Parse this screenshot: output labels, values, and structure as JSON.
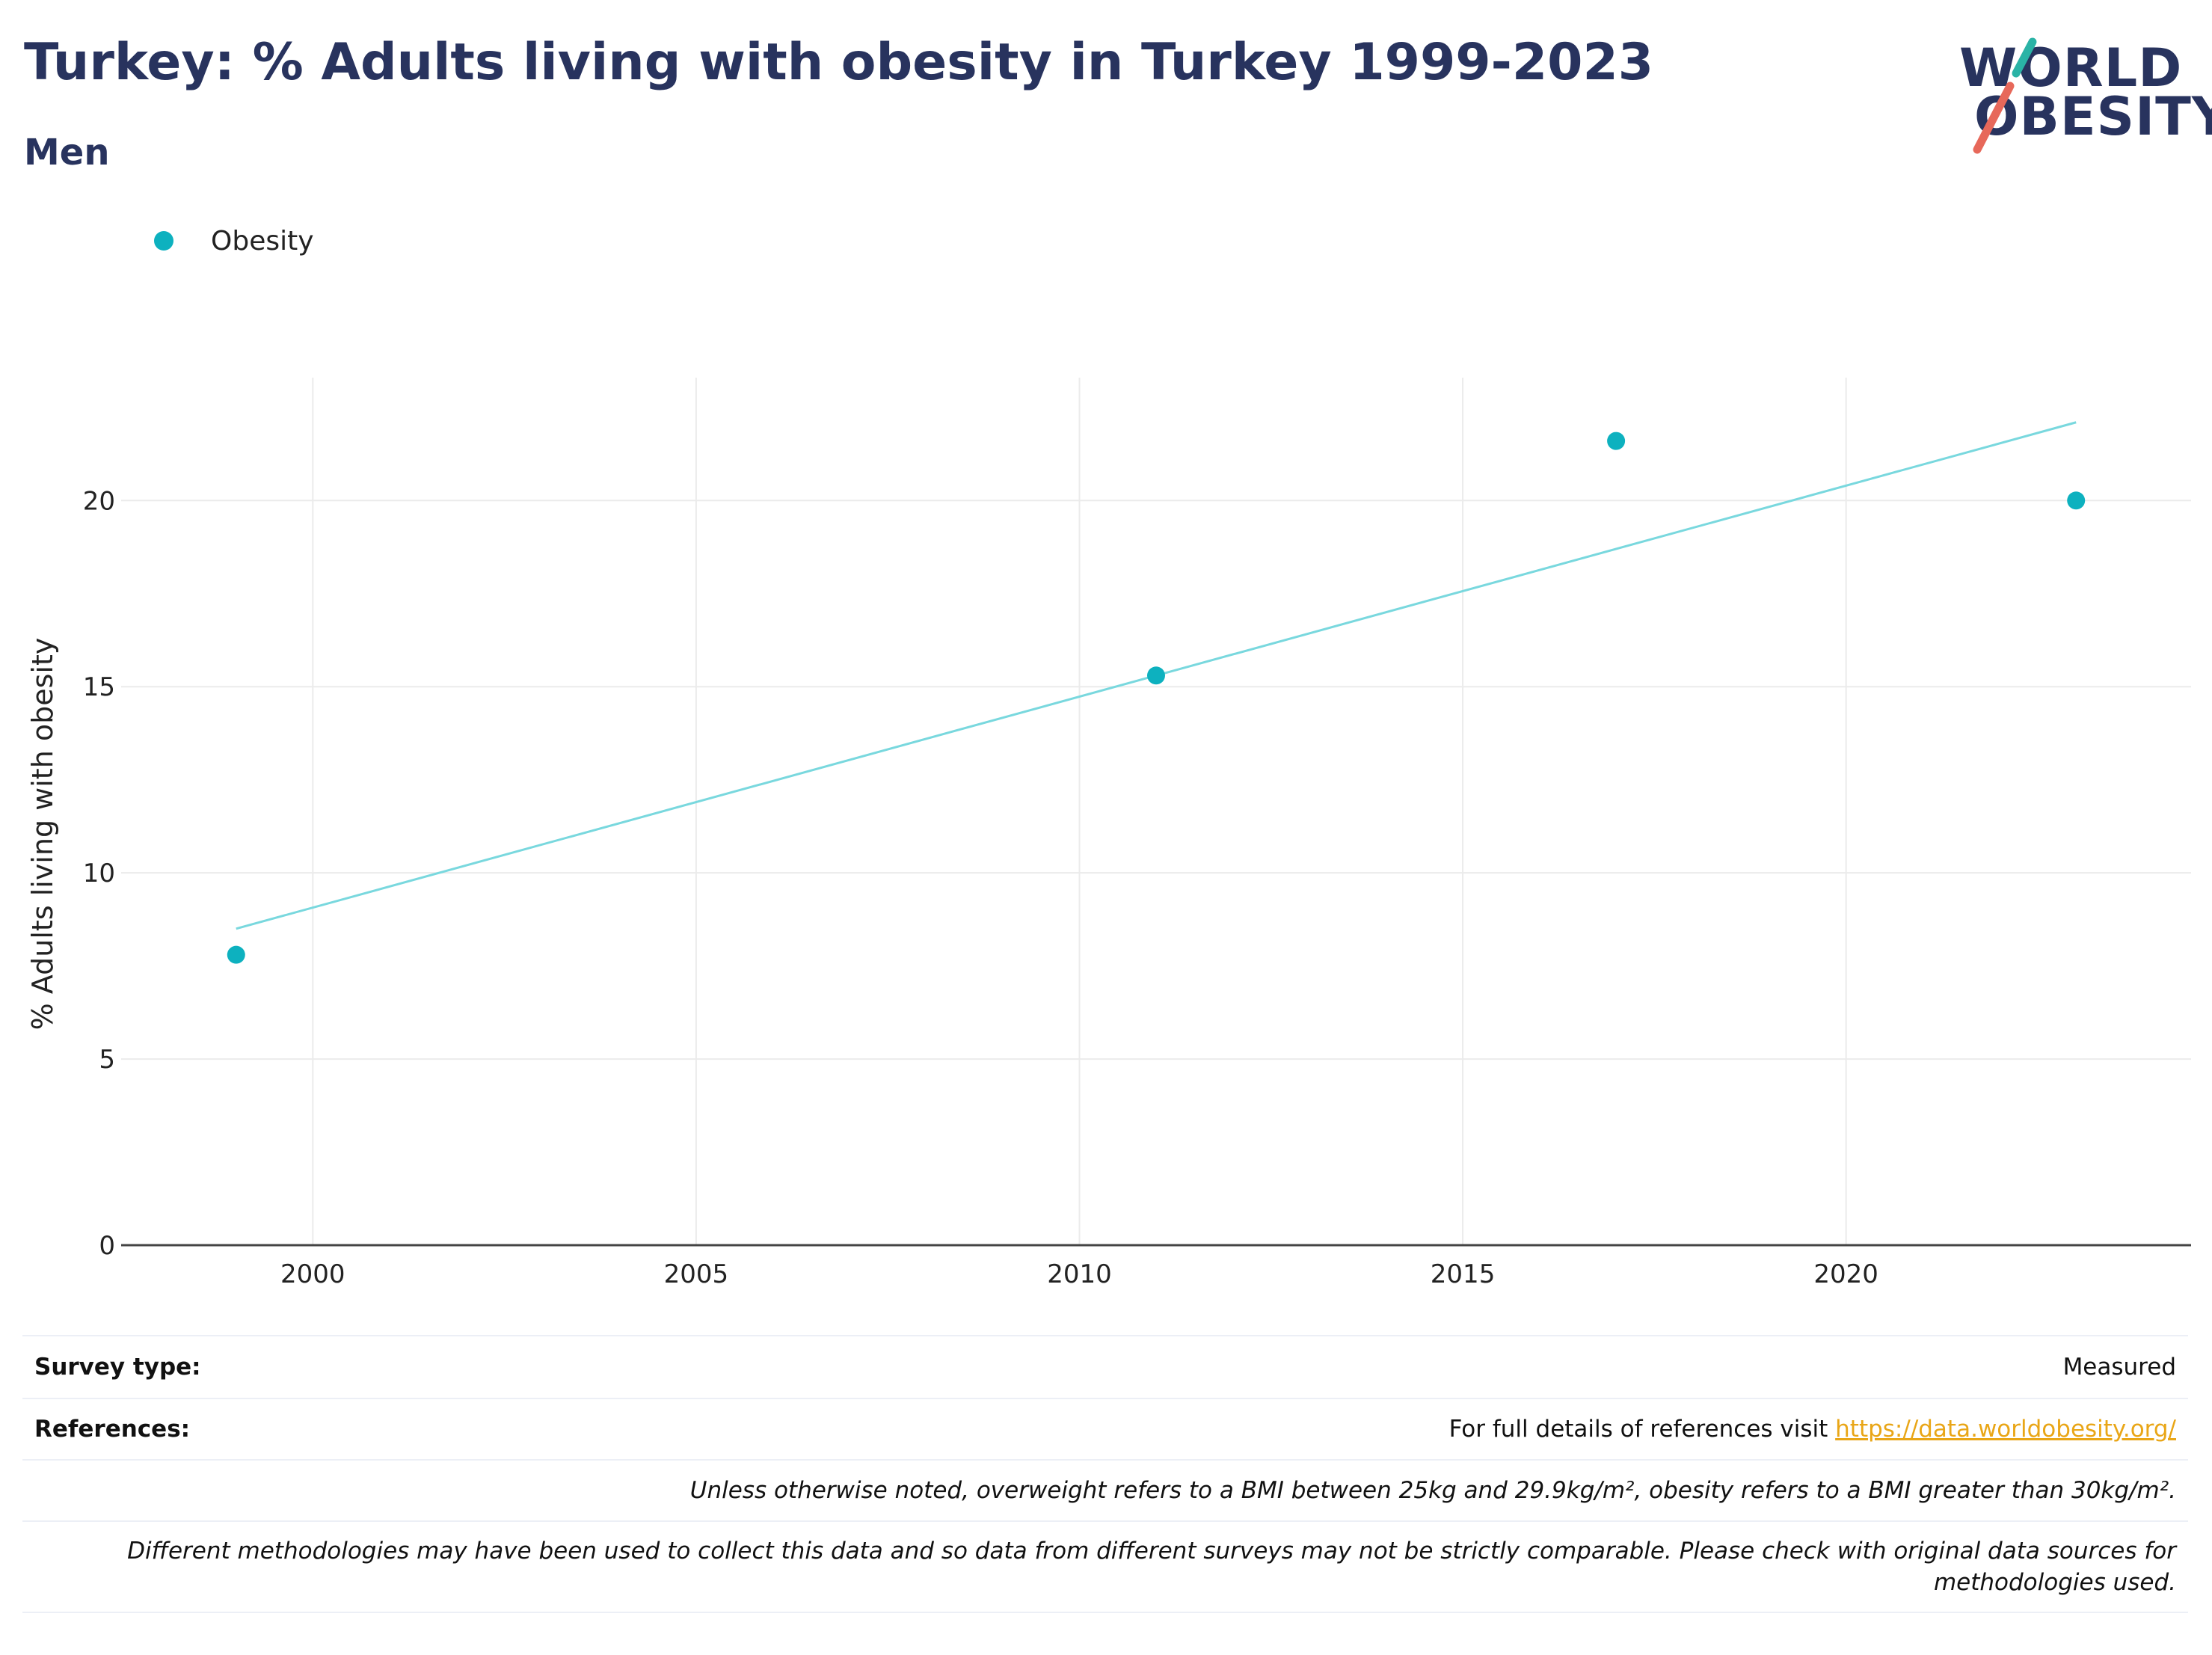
{
  "header": {
    "title": "Turkey: % Adults living with obesity in Turkey 1999-2023",
    "subtitle": "Men"
  },
  "logo": {
    "line1": "WORLD",
    "line2": "OBESITY",
    "text_color": "#28335e",
    "accent_teal": "#2ab3a6",
    "accent_red": "#e7685a"
  },
  "legend": {
    "label": "Obesity",
    "color": "#0db1bf"
  },
  "chart_data": {
    "type": "scatter",
    "title": "",
    "xlabel": "",
    "ylabel": "% Adults living with obesity",
    "xlim": [
      1997.5,
      2024.5
    ],
    "ylim": [
      0,
      23.3
    ],
    "x_ticks": [
      2000,
      2005,
      2010,
      2015,
      2020
    ],
    "y_ticks": [
      0,
      5,
      10,
      15,
      20
    ],
    "grid": true,
    "legend_position": "top-left",
    "series": [
      {
        "name": "Obesity",
        "color": "#0db1bf",
        "x": [
          1999,
          2011,
          2017,
          2023
        ],
        "y": [
          7.8,
          15.3,
          21.6,
          20.0
        ]
      }
    ],
    "trendline": {
      "color": "#79d8de",
      "x": [
        1999,
        2023
      ],
      "y": [
        8.5,
        22.1
      ]
    }
  },
  "footer": {
    "survey_type_label": "Survey type:",
    "survey_type_value": "Measured",
    "references_label": "References:",
    "references_text": "For full details of references visit ",
    "references_link": "https://data.worldobesity.org/",
    "note1": "Unless otherwise noted, overweight refers to a BMI between 25kg and 29.9kg/m², obesity refers to a BMI greater than 30kg/m².",
    "note2": "Different methodologies may have been used to collect this data and so data from different surveys may not be strictly comparable. Please check with original data sources for methodologies used."
  }
}
